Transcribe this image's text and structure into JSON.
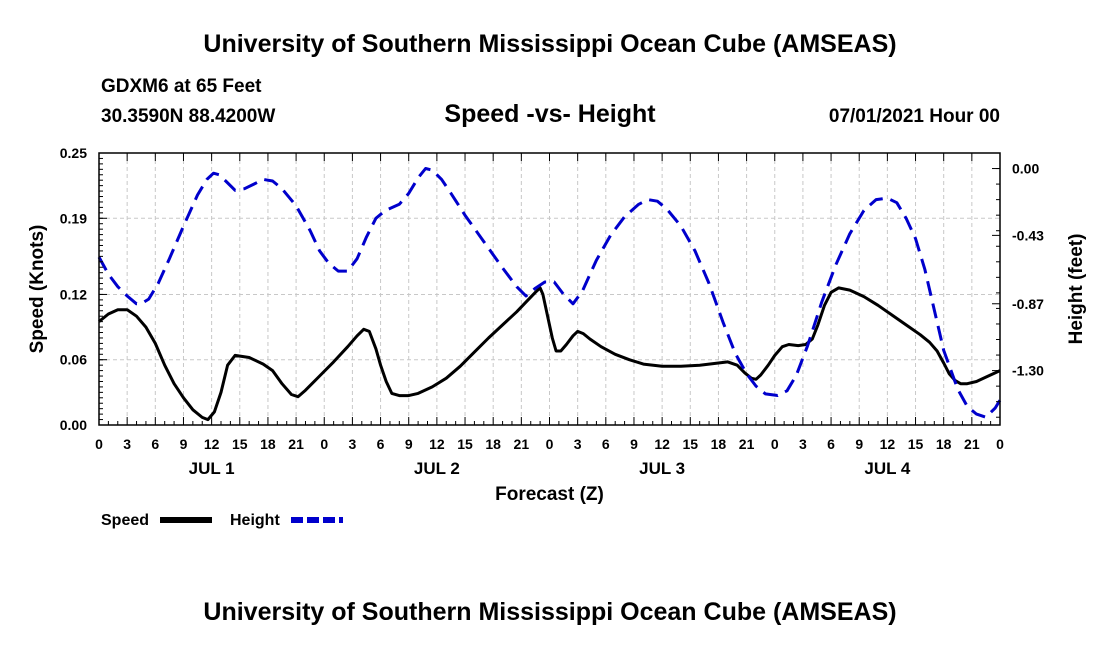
{
  "page": {
    "title_top": "University of Southern Mississippi Ocean Cube (AMSEAS)",
    "title_bottom": "University of Southern Mississippi Ocean Cube (AMSEAS)",
    "station": "GDXM6 at 65 Feet",
    "coordinates": "30.3590N  88.4200W",
    "subtitle": "Speed -vs- Height",
    "datetime": "07/01/2021 Hour 00"
  },
  "chart_data": {
    "type": "line",
    "title": "Speed -vs- Height",
    "xlabel": "Forecast (Z)",
    "ylabel_left": "Speed (Knots)",
    "ylabel_right": "Height (feet)",
    "x_range_hours": [
      0,
      96
    ],
    "x_tick_labels": [
      "0",
      "3",
      "6",
      "9",
      "12",
      "15",
      "18",
      "21",
      "0",
      "3",
      "6",
      "9",
      "12",
      "15",
      "18",
      "21",
      "0",
      "3",
      "6",
      "9",
      "12",
      "15",
      "18",
      "21",
      "0",
      "3",
      "6",
      "9",
      "12",
      "15",
      "18",
      "21",
      "0"
    ],
    "day_labels": [
      {
        "label": "JUL 1",
        "hour": 12
      },
      {
        "label": "JUL 2",
        "hour": 36
      },
      {
        "label": "JUL 3",
        "hour": 60
      },
      {
        "label": "JUL 4",
        "hour": 84
      }
    ],
    "y_left": {
      "min": 0.0,
      "max": 0.25,
      "ticks": [
        "0.00",
        "0.06",
        "0.12",
        "0.19",
        "0.25"
      ]
    },
    "y_right": {
      "min": -1.65,
      "max": 0.1,
      "ticks": [
        "0.00",
        "-0.43",
        "-0.87",
        "-1.30"
      ]
    },
    "grid": true,
    "legend_position": "bottom-left",
    "series": [
      {
        "name": "Speed",
        "axis": "left",
        "color": "#000000",
        "style": "solid",
        "points": [
          [
            0,
            0.095
          ],
          [
            1,
            0.102
          ],
          [
            2,
            0.106
          ],
          [
            3,
            0.106
          ],
          [
            4,
            0.1
          ],
          [
            5,
            0.09
          ],
          [
            6,
            0.075
          ],
          [
            7,
            0.055
          ],
          [
            8,
            0.038
          ],
          [
            9,
            0.025
          ],
          [
            10,
            0.014
          ],
          [
            11,
            0.007
          ],
          [
            11.6,
            0.005
          ],
          [
            12.3,
            0.012
          ],
          [
            13,
            0.03
          ],
          [
            13.7,
            0.055
          ],
          [
            14.5,
            0.064
          ],
          [
            16,
            0.062
          ],
          [
            17.5,
            0.056
          ],
          [
            18.5,
            0.05
          ],
          [
            19.5,
            0.038
          ],
          [
            20.5,
            0.028
          ],
          [
            21.2,
            0.026
          ],
          [
            22,
            0.032
          ],
          [
            23.5,
            0.045
          ],
          [
            25,
            0.058
          ],
          [
            26.5,
            0.072
          ],
          [
            27.5,
            0.082
          ],
          [
            28.2,
            0.088
          ],
          [
            28.8,
            0.086
          ],
          [
            29.5,
            0.07
          ],
          [
            30,
            0.055
          ],
          [
            30.6,
            0.04
          ],
          [
            31.2,
            0.029
          ],
          [
            32,
            0.027
          ],
          [
            33,
            0.027
          ],
          [
            34,
            0.029
          ],
          [
            35.5,
            0.035
          ],
          [
            37,
            0.043
          ],
          [
            38.5,
            0.054
          ],
          [
            40,
            0.067
          ],
          [
            41.5,
            0.08
          ],
          [
            43,
            0.092
          ],
          [
            44.5,
            0.104
          ],
          [
            45.5,
            0.113
          ],
          [
            46.5,
            0.122
          ],
          [
            47,
            0.126
          ],
          [
            47.3,
            0.12
          ],
          [
            47.8,
            0.1
          ],
          [
            48.3,
            0.08
          ],
          [
            48.7,
            0.068
          ],
          [
            49.2,
            0.068
          ],
          [
            49.8,
            0.074
          ],
          [
            50.5,
            0.082
          ],
          [
            51,
            0.086
          ],
          [
            51.6,
            0.084
          ],
          [
            52.3,
            0.079
          ],
          [
            53.5,
            0.072
          ],
          [
            55,
            0.065
          ],
          [
            56.5,
            0.06
          ],
          [
            58,
            0.056
          ],
          [
            60,
            0.054
          ],
          [
            62,
            0.054
          ],
          [
            64,
            0.055
          ],
          [
            66,
            0.057
          ],
          [
            67,
            0.058
          ],
          [
            68,
            0.055
          ],
          [
            68.8,
            0.048
          ],
          [
            69.5,
            0.043
          ],
          [
            70,
            0.042
          ],
          [
            70.5,
            0.046
          ],
          [
            71.3,
            0.055
          ],
          [
            72,
            0.064
          ],
          [
            72.8,
            0.072
          ],
          [
            73.5,
            0.074
          ],
          [
            74.5,
            0.073
          ],
          [
            75.3,
            0.074
          ],
          [
            76,
            0.079
          ],
          [
            76.6,
            0.092
          ],
          [
            77.3,
            0.11
          ],
          [
            78,
            0.122
          ],
          [
            78.8,
            0.126
          ],
          [
            80,
            0.124
          ],
          [
            81.5,
            0.118
          ],
          [
            83,
            0.11
          ],
          [
            84.5,
            0.101
          ],
          [
            86,
            0.092
          ],
          [
            87.5,
            0.083
          ],
          [
            88.5,
            0.076
          ],
          [
            89.3,
            0.068
          ],
          [
            90,
            0.057
          ],
          [
            90.6,
            0.047
          ],
          [
            91.2,
            0.041
          ],
          [
            91.8,
            0.038
          ],
          [
            92.5,
            0.038
          ],
          [
            93.5,
            0.04
          ],
          [
            94.5,
            0.044
          ],
          [
            96,
            0.05
          ]
        ]
      },
      {
        "name": "Height",
        "axis": "right",
        "color": "#0000cc",
        "style": "dashed",
        "points": [
          [
            0,
            -0.57
          ],
          [
            1,
            -0.68
          ],
          [
            2,
            -0.76
          ],
          [
            3,
            -0.82
          ],
          [
            4,
            -0.87
          ],
          [
            4.5,
            -0.87
          ],
          [
            5.3,
            -0.84
          ],
          [
            6.3,
            -0.74
          ],
          [
            7.5,
            -0.58
          ],
          [
            9,
            -0.37
          ],
          [
            10.5,
            -0.17
          ],
          [
            11.5,
            -0.07
          ],
          [
            12.2,
            -0.03
          ],
          [
            12.8,
            -0.04
          ],
          [
            13.5,
            -0.08
          ],
          [
            14.5,
            -0.14
          ],
          [
            15.5,
            -0.13
          ],
          [
            16.5,
            -0.1
          ],
          [
            17.5,
            -0.07
          ],
          [
            18.5,
            -0.08
          ],
          [
            19.5,
            -0.13
          ],
          [
            21,
            -0.24
          ],
          [
            22.5,
            -0.4
          ],
          [
            23.5,
            -0.53
          ],
          [
            24.5,
            -0.61
          ],
          [
            25.5,
            -0.66
          ],
          [
            26.5,
            -0.66
          ],
          [
            27.5,
            -0.58
          ],
          [
            28.5,
            -0.44
          ],
          [
            29.5,
            -0.32
          ],
          [
            30.5,
            -0.27
          ],
          [
            32,
            -0.23
          ],
          [
            33,
            -0.16
          ],
          [
            34,
            -0.06
          ],
          [
            34.8,
            0.0
          ],
          [
            35.5,
            -0.01
          ],
          [
            36.5,
            -0.07
          ],
          [
            37.5,
            -0.16
          ],
          [
            39,
            -0.3
          ],
          [
            41,
            -0.47
          ],
          [
            43,
            -0.64
          ],
          [
            44.5,
            -0.76
          ],
          [
            45.5,
            -0.82
          ],
          [
            46.5,
            -0.77
          ],
          [
            47.5,
            -0.73
          ],
          [
            48.5,
            -0.73
          ],
          [
            49.5,
            -0.81
          ],
          [
            50.5,
            -0.87
          ],
          [
            51.5,
            -0.79
          ],
          [
            53,
            -0.59
          ],
          [
            54.5,
            -0.43
          ],
          [
            56,
            -0.31
          ],
          [
            57.5,
            -0.23
          ],
          [
            58.5,
            -0.2
          ],
          [
            59.5,
            -0.21
          ],
          [
            60.5,
            -0.26
          ],
          [
            62,
            -0.37
          ],
          [
            63.5,
            -0.53
          ],
          [
            65,
            -0.74
          ],
          [
            66.5,
            -0.99
          ],
          [
            67.8,
            -1.19
          ],
          [
            69,
            -1.32
          ],
          [
            70,
            -1.4
          ],
          [
            71,
            -1.45
          ],
          [
            72.3,
            -1.46
          ],
          [
            73.3,
            -1.43
          ],
          [
            74.3,
            -1.33
          ],
          [
            75.5,
            -1.14
          ],
          [
            77,
            -0.86
          ],
          [
            78.5,
            -0.62
          ],
          [
            80,
            -0.42
          ],
          [
            81.5,
            -0.27
          ],
          [
            82.8,
            -0.2
          ],
          [
            84,
            -0.19
          ],
          [
            85,
            -0.22
          ],
          [
            86,
            -0.32
          ],
          [
            87,
            -0.45
          ],
          [
            88,
            -0.65
          ],
          [
            89,
            -0.91
          ],
          [
            90,
            -1.17
          ],
          [
            91.5,
            -1.42
          ],
          [
            92.5,
            -1.53
          ],
          [
            93.5,
            -1.58
          ],
          [
            94.5,
            -1.6
          ],
          [
            95.5,
            -1.54
          ],
          [
            96,
            -1.49
          ]
        ]
      }
    ],
    "legend": [
      {
        "label": "Speed",
        "color": "#000000",
        "style": "solid"
      },
      {
        "label": "Height",
        "color": "#0000cc",
        "style": "dashed"
      }
    ]
  }
}
